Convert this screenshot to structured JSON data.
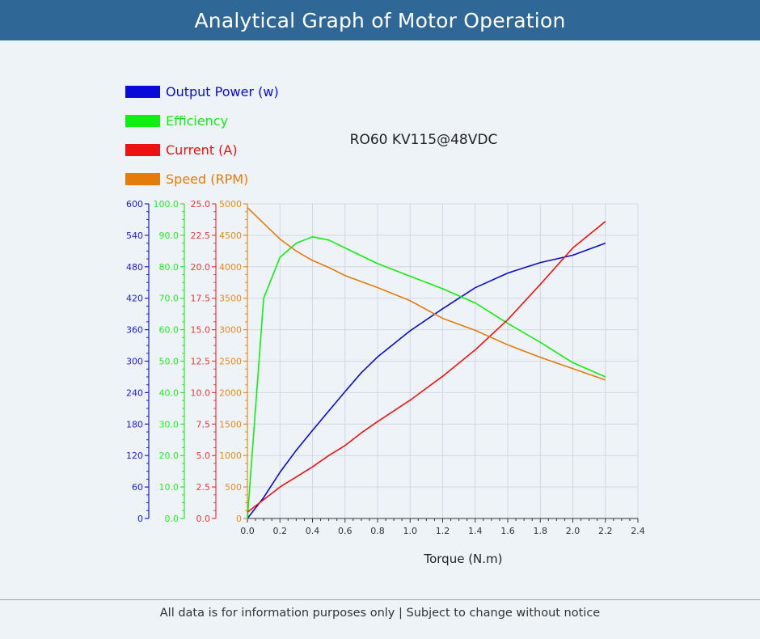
{
  "header": {
    "title": "Analytical Graph of Motor Operation"
  },
  "footer": {
    "note": "All data is for information purposes only | Subject to change without notice"
  },
  "chart_data": {
    "type": "line",
    "title": "RO60 KV115@48VDC",
    "xlabel": "Torque (N.m)",
    "xlim": [
      0,
      2.4
    ],
    "x_ticks": [
      "0.0",
      "0.2",
      "0.4",
      "0.6",
      "0.8",
      "1.0",
      "1.2",
      "1.4",
      "1.6",
      "1.8",
      "2.0",
      "2.2",
      "2.4"
    ],
    "grid": true,
    "legend_position": "top-left",
    "axes": [
      {
        "id": "power",
        "color": "#1a1adf",
        "min": 0,
        "max": 600,
        "ticks": [
          "0",
          "60",
          "120",
          "180",
          "240",
          "300",
          "360",
          "420",
          "480",
          "540",
          "600"
        ]
      },
      {
        "id": "efficiency",
        "color": "#22ee22",
        "min": 0,
        "max": 100,
        "ticks": [
          "0.0",
          "10.0",
          "20.0",
          "30.0",
          "40.0",
          "50.0",
          "60.0",
          "70.0",
          "80.0",
          "90.0",
          "100.0"
        ]
      },
      {
        "id": "current",
        "color": "#e83a3a",
        "min": 0,
        "max": 25,
        "ticks": [
          "0.0",
          "2.5",
          "5.0",
          "7.5",
          "10.0",
          "12.5",
          "15.0",
          "17.5",
          "20.0",
          "22.5",
          "25.0"
        ]
      },
      {
        "id": "speed",
        "color": "#e88a1a",
        "min": 0,
        "max": 5000,
        "ticks": [
          "0",
          "500",
          "1000",
          "1500",
          "2000",
          "2500",
          "3000",
          "3500",
          "4000",
          "4500",
          "5000"
        ]
      }
    ],
    "series": [
      {
        "name": "Output Power (w)",
        "axis": "power",
        "color": "#0a0ad8",
        "x": [
          0,
          0.1,
          0.2,
          0.3,
          0.4,
          0.5,
          0.6,
          0.7,
          0.8,
          1.0,
          1.2,
          1.4,
          1.6,
          1.8,
          2.0,
          2.2
        ],
        "y": [
          0,
          40,
          88,
          130,
          168,
          205,
          242,
          278,
          308,
          358,
          400,
          440,
          468,
          488,
          502,
          525
        ]
      },
      {
        "name": "Efficiency",
        "axis": "efficiency",
        "color": "#11ee11",
        "x": [
          0,
          0.1,
          0.2,
          0.3,
          0.4,
          0.5,
          0.6,
          0.8,
          1.0,
          1.2,
          1.4,
          1.6,
          1.8,
          2.0,
          2.2
        ],
        "y": [
          0,
          70,
          83,
          87.5,
          89.5,
          88.5,
          86,
          81,
          77,
          73,
          68.5,
          62,
          56,
          49.5,
          45
        ]
      },
      {
        "name": "Current (A)",
        "axis": "current",
        "color": "#ee1111",
        "x": [
          0,
          0.1,
          0.2,
          0.3,
          0.4,
          0.5,
          0.6,
          0.7,
          0.8,
          1.0,
          1.2,
          1.4,
          1.6,
          1.8,
          2.0,
          2.2
        ],
        "y": [
          0.5,
          1.5,
          2.5,
          3.3,
          4.1,
          5.0,
          5.8,
          6.8,
          7.7,
          9.4,
          11.3,
          13.4,
          15.8,
          18.6,
          21.5,
          23.6
        ]
      },
      {
        "name": "Speed (RPM)",
        "axis": "speed",
        "color": "#e67a0a",
        "x": [
          0,
          0.2,
          0.3,
          0.4,
          0.5,
          0.6,
          0.8,
          1.0,
          1.2,
          1.4,
          1.6,
          1.8,
          2.0,
          2.2
        ],
        "y": [
          4940,
          4440,
          4250,
          4100,
          3990,
          3860,
          3670,
          3460,
          3180,
          2990,
          2760,
          2560,
          2380,
          2200
        ]
      }
    ]
  }
}
